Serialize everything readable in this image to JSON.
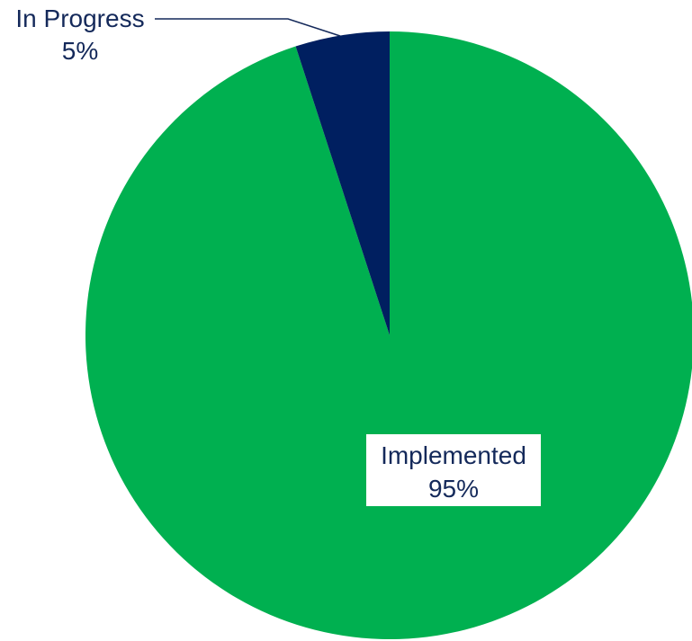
{
  "chart_data": {
    "type": "pie",
    "start_angle_deg": 0,
    "direction": "clockwise",
    "slices": [
      {
        "label": "Implemented",
        "value": 95,
        "value_label": "95%",
        "color": "#00b050"
      },
      {
        "label": "In Progress",
        "value": 5,
        "value_label": "5%",
        "color": "#001f60"
      }
    ],
    "legend": "none",
    "label_color": "#14295a"
  }
}
